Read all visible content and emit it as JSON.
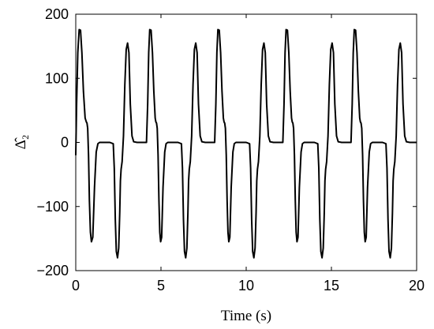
{
  "chart_data": {
    "type": "line",
    "title": "",
    "xlabel": "Time (s)",
    "ylabel": "Δ̂₂",
    "xlim": [
      0,
      20
    ],
    "ylim": [
      -200,
      200
    ],
    "xticks": [
      0,
      5,
      10,
      15,
      20
    ],
    "yticks": [
      -200,
      -100,
      0,
      100,
      200
    ],
    "grid": false,
    "legend": "none",
    "line_color": "#000000",
    "series": [
      {
        "x": [
          0,
          0.05,
          0.12,
          0.2,
          0.28,
          0.36,
          0.45,
          0.55,
          0.62,
          0.66,
          0.7,
          0.75,
          0.8,
          0.86,
          0.92,
          1.0,
          1.1,
          1.2,
          1.3,
          1.4,
          1.6,
          1.8,
          2.0,
          2.2,
          2.26,
          2.32,
          2.38,
          2.45,
          2.52,
          2.58,
          2.62,
          2.66,
          2.72,
          2.8,
          2.88,
          2.96,
          3.04,
          3.12,
          3.2,
          3.3,
          3.4,
          3.6,
          3.8,
          4.0,
          4.15,
          4.22,
          4.28,
          4.34,
          4.42,
          4.5,
          4.58,
          4.66,
          4.7,
          4.74,
          4.78,
          4.83,
          4.88,
          4.93,
          4.98,
          5.04,
          5.12,
          5.22,
          5.3,
          5.4,
          5.6,
          5.8,
          6.0,
          6.2,
          6.26,
          6.32,
          6.38,
          6.45,
          6.52,
          6.58,
          6.62,
          6.66,
          6.72,
          6.8,
          6.88,
          6.96,
          7.04,
          7.12,
          7.2,
          7.3,
          7.4,
          7.6,
          7.8,
          8.0,
          8.15,
          8.22,
          8.28,
          8.34,
          8.42,
          8.5,
          8.58,
          8.66,
          8.7,
          8.74,
          8.78,
          8.83,
          8.88,
          8.93,
          8.98,
          9.04,
          9.12,
          9.22,
          9.3,
          9.4,
          9.6,
          9.8,
          10.0,
          10.2,
          10.26,
          10.32,
          10.38,
          10.45,
          10.52,
          10.58,
          10.62,
          10.66,
          10.72,
          10.8,
          10.88,
          10.96,
          11.04,
          11.12,
          11.2,
          11.3,
          11.4,
          11.6,
          11.8,
          12.0,
          12.15,
          12.22,
          12.28,
          12.34,
          12.42,
          12.5,
          12.58,
          12.66,
          12.7,
          12.74,
          12.78,
          12.83,
          12.88,
          12.93,
          12.98,
          13.04,
          13.12,
          13.22,
          13.3,
          13.4,
          13.6,
          13.8,
          14.0,
          14.2,
          14.26,
          14.32,
          14.38,
          14.45,
          14.52,
          14.58,
          14.62,
          14.66,
          14.72,
          14.8,
          14.88,
          14.96,
          15.04,
          15.12,
          15.2,
          15.3,
          15.4,
          15.6,
          15.8,
          16.0,
          16.15,
          16.22,
          16.28,
          16.34,
          16.42,
          16.5,
          16.58,
          16.66,
          16.7,
          16.74,
          16.78,
          16.83,
          16.88,
          16.93,
          16.98,
          17.04,
          17.12,
          17.22,
          17.3,
          17.4,
          17.6,
          17.8,
          18.0,
          18.2,
          18.26,
          18.32,
          18.38,
          18.45,
          18.52,
          18.58,
          18.62,
          18.66,
          18.72,
          18.8,
          18.88,
          18.96,
          19.04,
          19.12,
          19.2,
          19.3,
          19.4,
          19.6,
          19.8,
          20.0
        ],
        "y": [
          -20,
          60,
          140,
          176,
          175,
          140,
          80,
          38,
          32,
          30,
          22,
          -20,
          -90,
          -140,
          -155,
          -148,
          -70,
          -15,
          -2,
          0,
          0,
          0,
          0,
          -2,
          -40,
          -120,
          -170,
          -180,
          -165,
          -110,
          -60,
          -42,
          -30,
          10,
          90,
          145,
          155,
          140,
          60,
          10,
          1,
          0,
          0,
          0,
          0,
          60,
          140,
          176,
          175,
          140,
          80,
          38,
          32,
          30,
          22,
          -20,
          -90,
          -140,
          -155,
          -148,
          -70,
          -15,
          -2,
          0,
          0,
          0,
          0,
          -2,
          -40,
          -120,
          -170,
          -180,
          -165,
          -110,
          -60,
          -42,
          -30,
          10,
          90,
          145,
          155,
          140,
          60,
          10,
          1,
          0,
          0,
          0,
          0,
          60,
          140,
          176,
          175,
          140,
          80,
          38,
          32,
          30,
          22,
          -20,
          -90,
          -140,
          -155,
          -148,
          -70,
          -15,
          -2,
          0,
          0,
          0,
          0,
          -2,
          -40,
          -120,
          -170,
          -180,
          -165,
          -110,
          -60,
          -42,
          -30,
          10,
          90,
          145,
          155,
          140,
          60,
          10,
          1,
          0,
          0,
          0,
          0,
          60,
          140,
          176,
          175,
          140,
          80,
          38,
          32,
          30,
          22,
          -20,
          -90,
          -140,
          -155,
          -148,
          -70,
          -15,
          -2,
          0,
          0,
          0,
          0,
          -2,
          -40,
          -120,
          -170,
          -180,
          -165,
          -110,
          -60,
          -42,
          -30,
          10,
          90,
          145,
          155,
          140,
          60,
          10,
          1,
          0,
          0,
          0,
          0,
          60,
          140,
          176,
          175,
          140,
          80,
          38,
          32,
          30,
          22,
          -20,
          -90,
          -140,
          -155,
          -148,
          -70,
          -15,
          -2,
          0,
          0,
          0,
          0,
          -2,
          -40,
          -120,
          -170,
          -180,
          -165,
          -110,
          -60,
          -42,
          -30,
          10,
          90,
          145,
          155,
          140,
          60,
          10,
          1,
          0,
          0,
          0
        ]
      }
    ]
  }
}
